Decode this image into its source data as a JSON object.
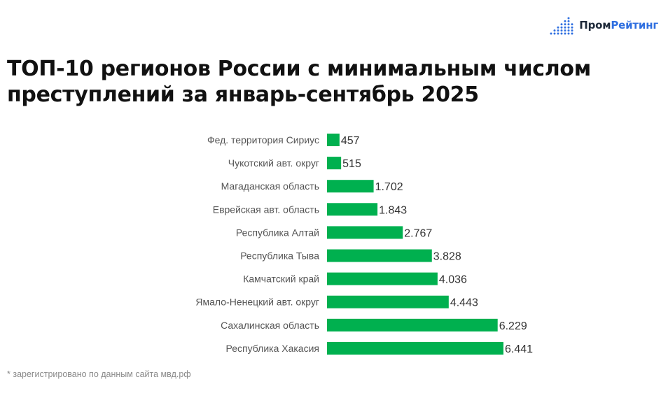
{
  "brand": {
    "name_part1": "Пром",
    "name_part2": "Рейтинг",
    "accent": "#2f6fe0"
  },
  "title_lines": [
    "ТОП-10 регионов России с минимальным числом",
    "преступлений за январь-сентябрь 2025"
  ],
  "footnote": "* зарегистрировано по данным сайта мвд.рф",
  "chart_data": {
    "type": "bar",
    "orientation": "horizontal",
    "title": "ТОП-10 регионов России с минимальным числом преступлений за январь-сентябрь 2025",
    "categories": [
      "Фед. территория Сириус",
      "Чукотский авт. округ",
      "Магаданская область",
      "Еврейская авт. область",
      "Республика Алтай",
      "Республика Тыва",
      "Камчатский край",
      "Ямало-Ненецкий авт. округ",
      "Сахалинская область",
      "Республика Хакасия"
    ],
    "values": [
      457,
      515,
      1702,
      1843,
      2767,
      3828,
      4036,
      4443,
      6229,
      6441
    ],
    "value_labels": [
      "457",
      "515",
      "1.702",
      "1.843",
      "2.767",
      "3.828",
      "4.036",
      "4.443",
      "6.229",
      "6.441"
    ],
    "bar_color": "#00b04f",
    "grid": false,
    "legend": "none"
  }
}
